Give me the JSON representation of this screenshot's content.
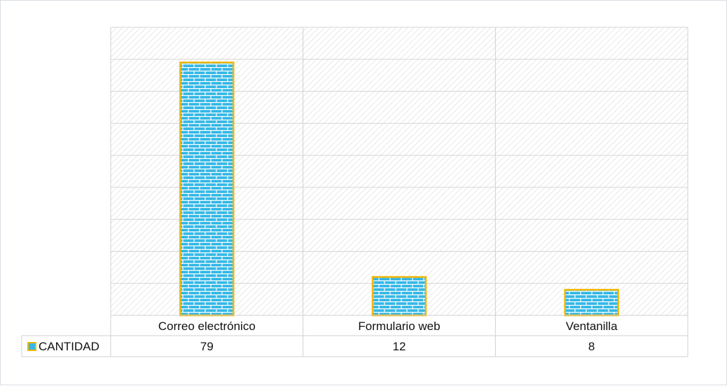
{
  "chart_data": {
    "type": "bar",
    "categories": [
      "Correo electrónico",
      "Formulario web",
      "Ventanilla"
    ],
    "series": [
      {
        "name": "CANTIDAD",
        "values": [
          79,
          12,
          8
        ]
      }
    ],
    "title": "",
    "xlabel": "",
    "ylabel": "",
    "ylim": [
      0,
      90
    ],
    "grid": true,
    "y_axis_labels_shown": false,
    "data_table": true,
    "legend": "data-table-left",
    "colors": {
      "bar_fill": "#35b8e6",
      "bar_pattern_lines": "#ffffff",
      "bar_outline": "#f2b705",
      "grid": "#d6d6d6",
      "plot_hatch": "#dcdcdc",
      "table_border": "#d0d0d0"
    },
    "bar_pattern": "brick"
  }
}
